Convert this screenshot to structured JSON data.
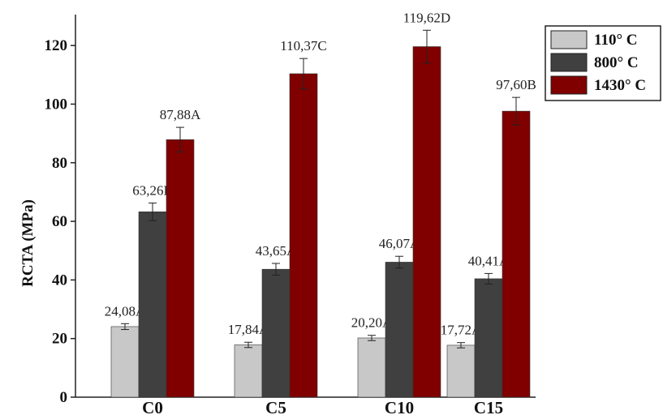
{
  "chart_data": {
    "type": "bar",
    "title": "",
    "xlabel": "",
    "ylabel": "RCTA (MPa)",
    "ylim": [
      0,
      130
    ],
    "yticks": [
      0,
      20,
      40,
      60,
      80,
      100,
      120
    ],
    "grid": false,
    "legend_position": "top-right",
    "categories": [
      "C0",
      "C5",
      "C10",
      "C15"
    ],
    "series": [
      {
        "name": "110° C",
        "color": "#c8c8c8",
        "values": [
          24.08,
          17.84,
          20.2,
          17.72
        ],
        "errors": [
          1.0,
          0.9,
          0.9,
          0.9
        ],
        "labels": [
          "24,08A",
          "17,84A",
          "20,20A",
          "17,72A"
        ]
      },
      {
        "name": "800° C",
        "color": "#404040",
        "values": [
          63.26,
          43.65,
          46.07,
          40.41
        ],
        "errors": [
          3.0,
          2.0,
          2.0,
          1.8
        ],
        "labels": [
          "63,26B",
          "43,65A",
          "46,07A",
          "40,41A"
        ]
      },
      {
        "name": "1430° C",
        "color": "#800000",
        "values": [
          87.88,
          110.37,
          119.62,
          97.6
        ],
        "errors": [
          4.2,
          5.2,
          5.6,
          4.7
        ],
        "labels": [
          "87,88A",
          "110,37C",
          "119,62D",
          "97,60B"
        ]
      }
    ]
  }
}
